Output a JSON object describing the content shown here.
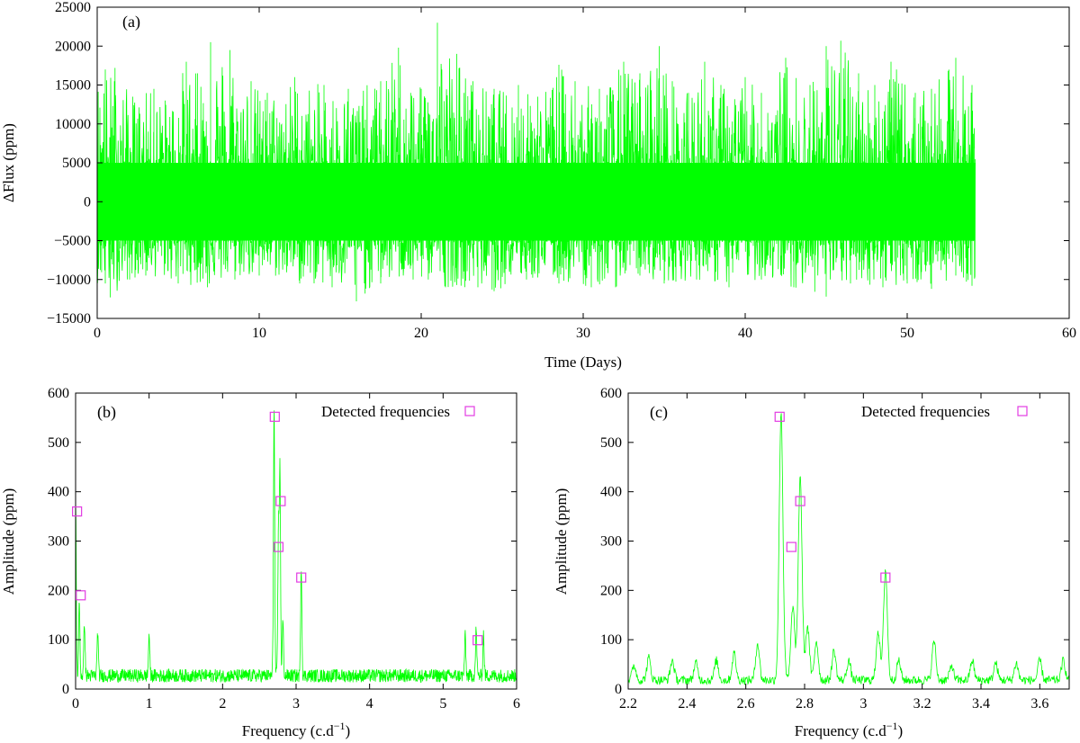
{
  "chart_data": [
    {
      "type": "line",
      "panel_label": "(a)",
      "xlabel": "Time (Days)",
      "ylabel": "ΔFlux (ppm)",
      "xlim": [
        0,
        60
      ],
      "ylim": [
        -15000,
        25000
      ],
      "x_ticks": [
        "0",
        "10",
        "20",
        "30",
        "40",
        "50",
        "60"
      ],
      "y_ticks": [
        "-15000",
        "-10000",
        "-5000",
        "0",
        "5000",
        "10000",
        "15000",
        "20000",
        "25000"
      ],
      "series": [
        {
          "color": "#00ff00",
          "x_range": [
            0,
            54.2
          ],
          "envelope_upper": [
            [
              0.5,
              17000
            ],
            [
              1.1,
              17200
            ],
            [
              2.2,
              13500
            ],
            [
              3.5,
              14500
            ],
            [
              4.2,
              13000
            ],
            [
              5.5,
              18000
            ],
            [
              6.2,
              16500
            ],
            [
              7.0,
              20500
            ],
            [
              8.2,
              19500
            ],
            [
              9.5,
              15500
            ],
            [
              10.5,
              14000
            ],
            [
              12.2,
              16000
            ],
            [
              14.0,
              15000
            ],
            [
              15.5,
              14500
            ],
            [
              17.5,
              15500
            ],
            [
              18.6,
              19800
            ],
            [
              20.0,
              14500
            ],
            [
              21.0,
              23000
            ],
            [
              22.2,
              19000
            ],
            [
              23.2,
              15500
            ],
            [
              24.5,
              14500
            ],
            [
              26.0,
              15000
            ],
            [
              27.2,
              13500
            ],
            [
              28.5,
              17600
            ],
            [
              29.5,
              15500
            ],
            [
              31.0,
              14500
            ],
            [
              32.5,
              18000
            ],
            [
              33.5,
              16500
            ],
            [
              34.7,
              20000
            ],
            [
              35.5,
              15500
            ],
            [
              36.5,
              14000
            ],
            [
              37.5,
              18000
            ],
            [
              38.5,
              15000
            ],
            [
              40.0,
              16000
            ],
            [
              41.0,
              14000
            ],
            [
              42.5,
              18500
            ],
            [
              44.0,
              15000
            ],
            [
              45.0,
              20000
            ],
            [
              45.9,
              20700
            ],
            [
              47.0,
              16500
            ],
            [
              48.0,
              15000
            ],
            [
              49.0,
              18000
            ],
            [
              50.5,
              14000
            ],
            [
              51.5,
              14500
            ],
            [
              53.0,
              18500
            ],
            [
              54.0,
              15000
            ]
          ],
          "envelope_lower": [
            [
              0.5,
              -10500
            ],
            [
              0.8,
              -12300
            ],
            [
              2.0,
              -10000
            ],
            [
              3.0,
              -9500
            ],
            [
              5.0,
              -10500
            ],
            [
              6.8,
              -11000
            ],
            [
              8.5,
              -10000
            ],
            [
              10.0,
              -9500
            ],
            [
              12.5,
              -10500
            ],
            [
              14.5,
              -11000
            ],
            [
              16.0,
              -12800
            ],
            [
              17.5,
              -10500
            ],
            [
              19.5,
              -10000
            ],
            [
              21.5,
              -11000
            ],
            [
              23.5,
              -11000
            ],
            [
              24.5,
              -11500
            ],
            [
              26.5,
              -10000
            ],
            [
              28.5,
              -10500
            ],
            [
              30.5,
              -11000
            ],
            [
              32.0,
              -11000
            ],
            [
              33.5,
              -9500
            ],
            [
              35.0,
              -10500
            ],
            [
              37.0,
              -10000
            ],
            [
              39.0,
              -11000
            ],
            [
              41.0,
              -10000
            ],
            [
              43.0,
              -11000
            ],
            [
              45.0,
              -12200
            ],
            [
              46.5,
              -10500
            ],
            [
              48.5,
              -11000
            ],
            [
              50.0,
              -10500
            ],
            [
              51.5,
              -11200
            ],
            [
              53.0,
              -9500
            ],
            [
              54.0,
              -10800
            ]
          ],
          "core_band": [
            -5000,
            5000
          ]
        }
      ]
    },
    {
      "type": "line",
      "panel_label": "(b)",
      "xlabel": "Frequency (c.d",
      "xlabel_sup": "−1",
      "xlabel_end": ")",
      "ylabel": "Amplitude (ppm)",
      "xlim": [
        0,
        6
      ],
      "ylim": [
        0,
        600
      ],
      "x_ticks": [
        "0",
        "1",
        "2",
        "3",
        "4",
        "5",
        "6"
      ],
      "y_ticks": [
        "0",
        "100",
        "200",
        "300",
        "400",
        "500",
        "600"
      ],
      "series": [
        {
          "color": "#00ff00",
          "peaks": [
            [
              0.0,
              350
            ],
            [
              0.05,
              145
            ],
            [
              0.12,
              110
            ],
            [
              0.3,
              90
            ],
            [
              1.0,
              85
            ],
            [
              2.7,
              545
            ],
            [
              2.76,
              290
            ],
            [
              2.78,
              410
            ],
            [
              2.82,
              110
            ],
            [
              3.07,
              225
            ],
            [
              5.3,
              80
            ],
            [
              5.45,
              95
            ],
            [
              5.55,
              85
            ]
          ],
          "noise_level": 30
        }
      ],
      "markers": {
        "name": "Detected frequencies",
        "color": "#e23ce2",
        "points": [
          [
            0.02,
            360
          ],
          [
            0.07,
            190
          ],
          [
            2.71,
            552
          ],
          [
            2.76,
            288
          ],
          [
            2.79,
            381
          ],
          [
            3.07,
            226
          ],
          [
            5.47,
            99
          ]
        ]
      }
    },
    {
      "type": "line",
      "panel_label": "(c)",
      "xlabel": "Frequency (c.d",
      "xlabel_sup": "−1",
      "xlabel_end": ")",
      "ylabel": "Amplitude (ppm)",
      "xlim": [
        2.2,
        3.7
      ],
      "ylim": [
        0,
        600
      ],
      "x_ticks": [
        "2.2",
        "2.4",
        "2.6",
        "2.8",
        "3",
        "3.2",
        "3.4",
        "3.6"
      ],
      "y_ticks": [
        "0",
        "100",
        "200",
        "300",
        "400",
        "500",
        "600"
      ],
      "series": [
        {
          "color": "#00ff00",
          "peaks": [
            [
              2.22,
              30
            ],
            [
              2.27,
              45
            ],
            [
              2.35,
              40
            ],
            [
              2.43,
              35
            ],
            [
              2.5,
              40
            ],
            [
              2.56,
              55
            ],
            [
              2.64,
              75
            ],
            [
              2.72,
              545
            ],
            [
              2.76,
              150
            ],
            [
              2.785,
              415
            ],
            [
              2.81,
              110
            ],
            [
              2.84,
              80
            ],
            [
              2.9,
              60
            ],
            [
              2.95,
              40
            ],
            [
              3.05,
              100
            ],
            [
              3.075,
              225
            ],
            [
              3.12,
              40
            ],
            [
              3.24,
              80
            ],
            [
              3.3,
              30
            ],
            [
              3.37,
              40
            ],
            [
              3.45,
              35
            ],
            [
              3.52,
              35
            ],
            [
              3.6,
              40
            ],
            [
              3.68,
              40
            ]
          ],
          "noise_level": 20
        }
      ],
      "markers": {
        "name": "Detected frequencies",
        "color": "#e23ce2",
        "points": [
          [
            2.715,
            552
          ],
          [
            2.755,
            288
          ],
          [
            2.785,
            381
          ],
          [
            3.075,
            226
          ]
        ]
      }
    }
  ]
}
